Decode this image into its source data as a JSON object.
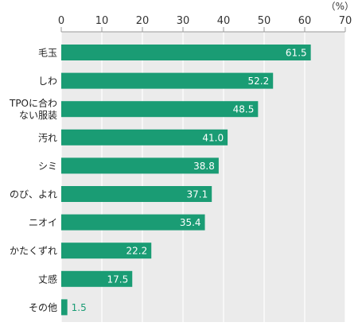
{
  "chart_data": {
    "type": "bar",
    "orientation": "horizontal",
    "unit": "（%）",
    "xlim": [
      0,
      70
    ],
    "ticks": [
      0,
      10,
      20,
      30,
      40,
      50,
      60,
      70
    ],
    "categories": [
      "毛玉",
      "しわ",
      "TPOに合わない服装",
      "汚れ",
      "シミ",
      "のび、よれ",
      "ニオイ",
      "かたくずれ",
      "丈感",
      "その他"
    ],
    "category_lines": [
      [
        "毛玉"
      ],
      [
        "しわ"
      ],
      [
        "TPOに合わ",
        "ない服装"
      ],
      [
        "汚れ"
      ],
      [
        "シミ"
      ],
      [
        "のび、よれ"
      ],
      [
        "ニオイ"
      ],
      [
        "かたくずれ"
      ],
      [
        "丈感"
      ],
      [
        "その他"
      ]
    ],
    "values": [
      61.5,
      52.2,
      48.5,
      41.0,
      38.8,
      37.1,
      35.4,
      22.2,
      17.5,
      1.5
    ],
    "value_labels": [
      "61.5",
      "52.2",
      "48.5",
      "41.0",
      "38.8",
      "37.1",
      "35.4",
      "22.2",
      "17.5",
      "1.5"
    ],
    "bar_color": "#1a9c74",
    "background_color": "#ebebeb",
    "grid": true
  }
}
